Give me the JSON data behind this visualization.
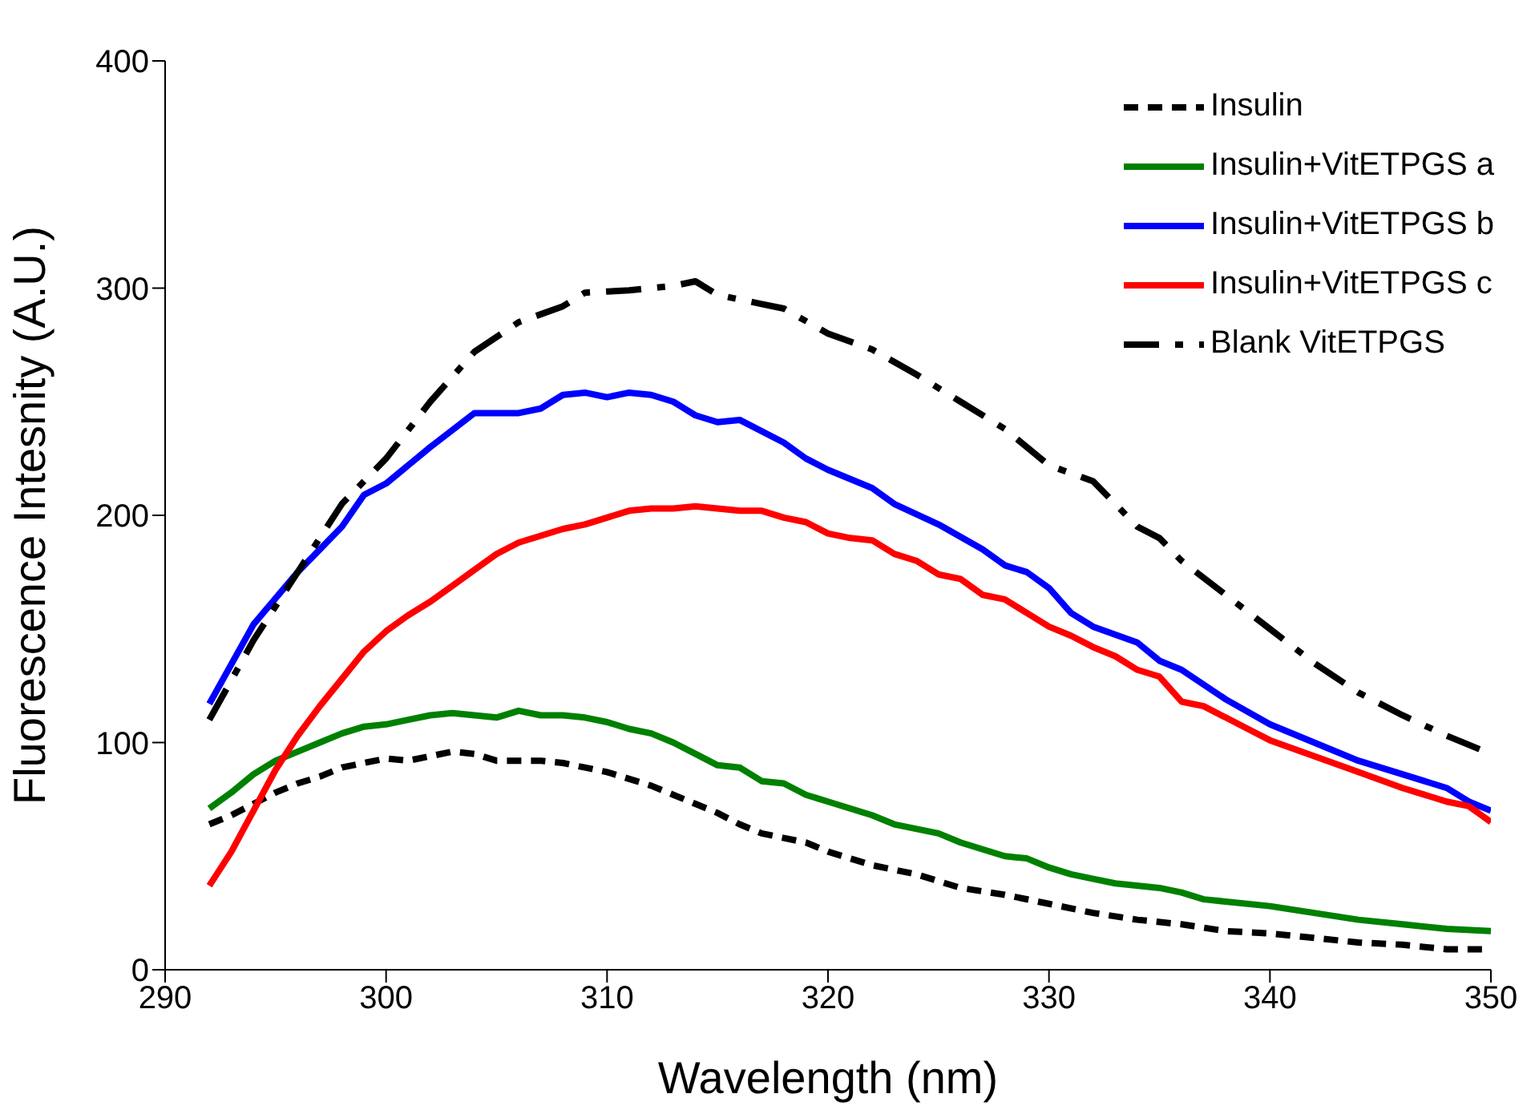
{
  "chart_data": {
    "type": "line",
    "xlabel": "Wavelength (nm)",
    "ylabel": "Fluorescence Intesnity (A.U.)",
    "xlim": [
      290,
      350
    ],
    "xticks": [
      290,
      300,
      310,
      320,
      330,
      340,
      350
    ],
    "ylim": [
      0,
      400
    ],
    "yticks": [
      0,
      100,
      200,
      300,
      400
    ],
    "grid": false,
    "legend": "top right",
    "marker": "none",
    "series": [
      {
        "name": "Insulin",
        "color": "#000000",
        "line_style": "dashed",
        "x": [
          292,
          293,
          294,
          295,
          296,
          297,
          298,
          299,
          300,
          301,
          302,
          303,
          304,
          305,
          306,
          307,
          308,
          309,
          310,
          311,
          312,
          313,
          314,
          315,
          316,
          317,
          318,
          319,
          320,
          322,
          324,
          326,
          328,
          330,
          332,
          334,
          336,
          338,
          340,
          342,
          344,
          346,
          348,
          350
        ],
        "values": [
          64,
          68,
          73,
          78,
          82,
          85,
          89,
          91,
          93,
          92,
          94,
          96,
          95,
          92,
          92,
          92,
          91,
          89,
          87,
          84,
          81,
          77,
          73,
          69,
          64,
          60,
          58,
          56,
          52,
          46,
          42,
          36,
          33,
          29,
          25,
          22,
          20,
          17,
          16,
          14,
          12,
          11,
          9,
          9
        ]
      },
      {
        "name": "Insulin+VitETPGS a",
        "color": "#008000",
        "line_style": "solid",
        "x": [
          292,
          293,
          294,
          295,
          296,
          297,
          298,
          299,
          300,
          301,
          302,
          303,
          304,
          305,
          306,
          307,
          308,
          309,
          310,
          311,
          312,
          313,
          314,
          315,
          316,
          317,
          318,
          319,
          320,
          322,
          323,
          325,
          326,
          327,
          328,
          329,
          330,
          331,
          332,
          333,
          335,
          336,
          337,
          338,
          340,
          342,
          344,
          346,
          348,
          350
        ],
        "values": [
          71,
          78,
          86,
          92,
          96,
          100,
          104,
          107,
          108,
          110,
          112,
          113,
          112,
          111,
          114,
          112,
          112,
          111,
          109,
          106,
          104,
          100,
          95,
          90,
          89,
          83,
          82,
          77,
          74,
          68,
          64,
          60,
          56,
          53,
          50,
          49,
          45,
          42,
          40,
          38,
          36,
          34,
          31,
          30,
          28,
          25,
          22,
          20,
          18,
          17
        ]
      },
      {
        "name": "Insulin+VitETPGS b",
        "color": "#0000ff",
        "line_style": "solid",
        "x": [
          292,
          294,
          296,
          298,
          299,
          300,
          302,
          304,
          306,
          307,
          308,
          309,
          310,
          311,
          312,
          313,
          314,
          315,
          316,
          318,
          319,
          320,
          322,
          323,
          325,
          327,
          328,
          329,
          330,
          331,
          332,
          334,
          335,
          336,
          338,
          340,
          342,
          344,
          346,
          348,
          349,
          350
        ],
        "values": [
          117,
          152,
          175,
          195,
          209,
          214,
          230,
          245,
          245,
          247,
          253,
          254,
          252,
          254,
          253,
          250,
          244,
          241,
          242,
          232,
          225,
          220,
          212,
          205,
          196,
          185,
          178,
          175,
          168,
          157,
          151,
          144,
          136,
          132,
          119,
          108,
          100,
          92,
          86,
          80,
          74,
          70
        ]
      },
      {
        "name": "Insulin+VitETPGS c",
        "color": "#ff0000",
        "line_style": "solid",
        "x": [
          292,
          293,
          294,
          295,
          296,
          297,
          298,
          299,
          300,
          301,
          302,
          303,
          304,
          305,
          306,
          307,
          308,
          309,
          310,
          311,
          312,
          313,
          314,
          315,
          316,
          317,
          318,
          319,
          320,
          321,
          322,
          323,
          324,
          325,
          326,
          327,
          328,
          329,
          330,
          331,
          332,
          333,
          334,
          335,
          336,
          337,
          338,
          339,
          340,
          342,
          344,
          346,
          348,
          349,
          350
        ],
        "values": [
          37,
          52,
          70,
          88,
          103,
          116,
          128,
          140,
          149,
          156,
          162,
          169,
          176,
          183,
          188,
          191,
          194,
          196,
          199,
          202,
          203,
          203,
          204,
          203,
          202,
          202,
          199,
          197,
          192,
          190,
          189,
          183,
          180,
          174,
          172,
          165,
          163,
          157,
          151,
          147,
          142,
          138,
          132,
          129,
          118,
          116,
          111,
          106,
          101,
          94,
          87,
          80,
          74,
          72,
          65
        ]
      },
      {
        "name": "Blank VitETPGS",
        "color": "#000000",
        "line_style": "dashdot",
        "x": [
          292,
          294,
          296,
          298,
          300,
          302,
          304,
          306,
          308,
          309,
          311,
          313,
          314,
          315,
          317,
          318,
          320,
          322,
          324,
          326,
          328,
          330,
          332,
          334,
          335,
          336,
          338,
          340,
          342,
          344,
          346,
          348,
          350
        ],
        "values": [
          110,
          145,
          175,
          205,
          225,
          250,
          272,
          285,
          292,
          298,
          299,
          301,
          303,
          297,
          293,
          291,
          280,
          273,
          262,
          250,
          238,
          222,
          215,
          195,
          190,
          180,
          165,
          150,
          135,
          122,
          112,
          103,
          95
        ]
      }
    ]
  }
}
